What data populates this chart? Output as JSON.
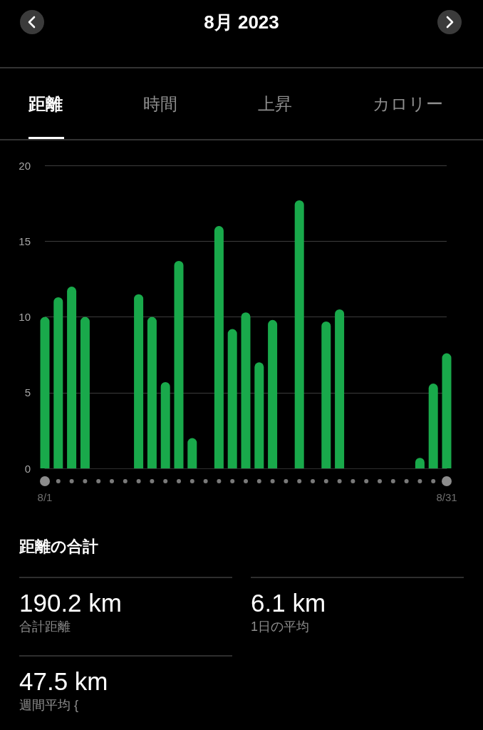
{
  "chart_data": [
    {
      "type": "bar",
      "title": "8月 2023",
      "annotations": [
        "距離",
        "時間",
        "上昇",
        "カロリー"
      ],
      "categories": [
        "8/1",
        null,
        null,
        null,
        null,
        null,
        null,
        null,
        null,
        null,
        null,
        null,
        null,
        null,
        null,
        null,
        null,
        null,
        null,
        null,
        null,
        null,
        null,
        null,
        null,
        null,
        null,
        null,
        null,
        null,
        "8/31"
      ],
      "values": [
        10,
        11.3,
        12,
        10,
        0,
        0,
        0,
        11.5,
        10,
        5.7,
        13.7,
        2,
        0,
        16,
        9.2,
        10.3,
        7,
        9.8,
        0,
        17.7,
        0,
        9.7,
        10.5,
        0,
        0,
        0,
        0,
        0,
        0.7,
        5.6,
        7.6
      ],
      "color": "#19a94b",
      "ylim": [
        0,
        20
      ],
      "yticks": [
        0,
        5,
        10,
        15,
        20
      ],
      "grid": "y"
    },
    {
      "type": "other",
      "title": "距離の合計",
      "annotations": [
        "190.2 km",
        "合計距離",
        "6.1 km",
        "1日の平均",
        "47.5 km",
        "週間平均 {"
      ]
    }
  ]
}
